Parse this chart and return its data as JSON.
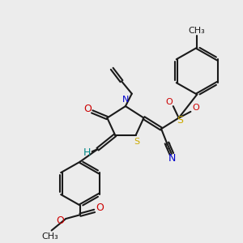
{
  "background_color": "#ececec",
  "line_color": "#1a1a1a",
  "bond_width": 1.5,
  "figsize": [
    3.0,
    3.0
  ],
  "dpi": 100,
  "colors": {
    "S": "#ccaa00",
    "N": "#0000cc",
    "O": "#cc0000",
    "C": "#1a1a1a",
    "H": "#008888"
  }
}
